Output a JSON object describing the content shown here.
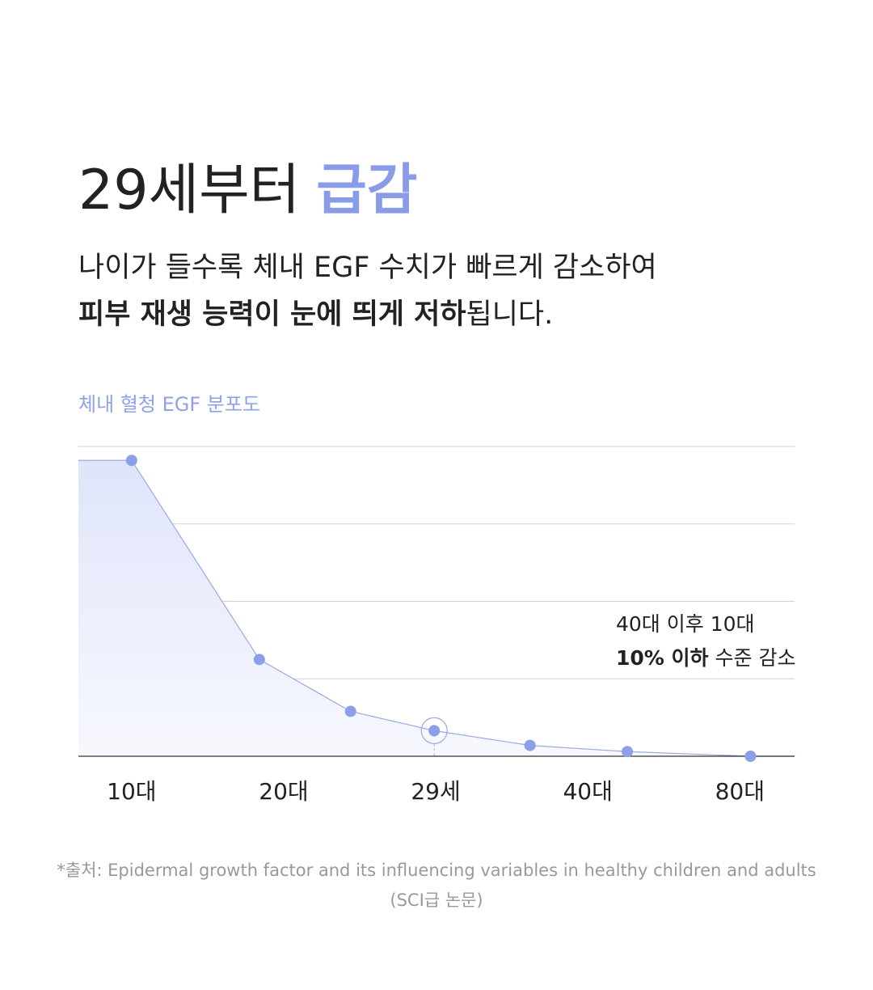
{
  "header": {
    "title": [
      "29세부터",
      "급감"
    ],
    "subtitle": [
      [
        "나이가 들수록 체내 EGF 수치가 빠르게 감소하여"
      ],
      [
        "피부 재생 능력이 눈에 띄게 저하",
        "됩니다."
      ]
    ]
  },
  "chart_data": {
    "type": "area",
    "title": "체내 혈청 EGF 분포도",
    "x": [
      1,
      1.84,
      2.44,
      2.99,
      3.62,
      4.26,
      5.07
    ],
    "values": [
      3.82,
      1.25,
      0.58,
      0.33,
      0.14,
      0.06,
      0
    ],
    "color": "#8e9fe9",
    "xlim": [
      0.65,
      5.36
    ],
    "xticks": [
      {
        "value": 1,
        "label": "10대"
      },
      {
        "value": 2,
        "label": "20대"
      },
      {
        "value": 3,
        "label": "29세"
      },
      {
        "value": 4,
        "label": "40대"
      },
      {
        "value": 5,
        "label": "80대"
      }
    ],
    "ylim": [
      0,
      4
    ],
    "yticks": [
      0,
      1,
      2,
      3,
      4
    ],
    "grid": true,
    "annotation": [
      [
        "40대 이후 10대"
      ],
      [
        "10% 이하",
        "수준 감소"
      ]
    ]
  },
  "footnote": [
    "*출처: Epidermal growth factor and its influencing variables in healthy children and adults",
    "(SCI급 논문)"
  ]
}
